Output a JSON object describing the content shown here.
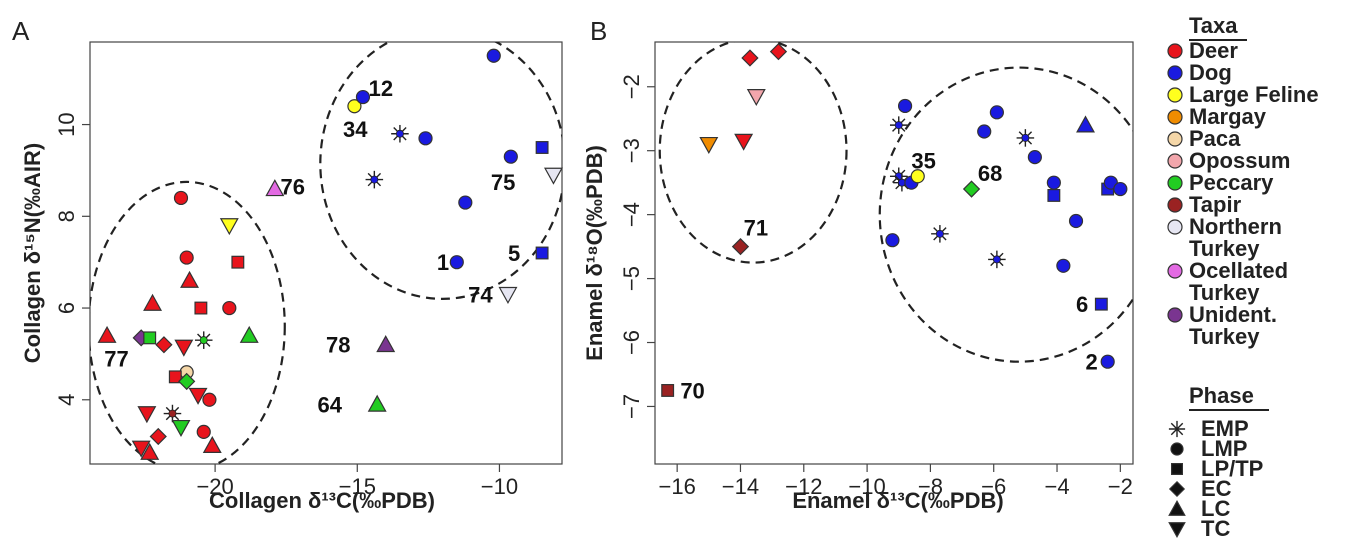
{
  "chart_data": [
    {
      "type": "scatter",
      "panel_label": "A",
      "xlabel": "Collagen δ¹³C(‰PDB)",
      "ylabel": "Collagen δ¹⁵N(‰AIR)",
      "xlim": [
        -24.4,
        -7.8
      ],
      "ylim": [
        2.6,
        11.8
      ],
      "xticks": [
        -20,
        -15,
        -10
      ],
      "yticks": [
        4,
        6,
        8,
        10
      ],
      "points": [
        {
          "x": -21.2,
          "y": 8.4,
          "taxon": "Deer",
          "phase": "LMP"
        },
        {
          "x": -19.5,
          "y": 7.8,
          "taxon": "Large Feline",
          "phase": "TC"
        },
        {
          "x": -21.0,
          "y": 7.1,
          "taxon": "Deer",
          "phase": "LMP"
        },
        {
          "x": -19.2,
          "y": 7.0,
          "taxon": "Deer",
          "phase": "LP/TP"
        },
        {
          "x": -20.9,
          "y": 6.6,
          "taxon": "Deer",
          "phase": "LC"
        },
        {
          "x": -22.2,
          "y": 6.1,
          "taxon": "Deer",
          "phase": "LC"
        },
        {
          "x": -20.5,
          "y": 6.0,
          "taxon": "Deer",
          "phase": "LP/TP"
        },
        {
          "x": -19.5,
          "y": 6.0,
          "taxon": "Deer",
          "phase": "LMP"
        },
        {
          "x": -23.8,
          "y": 5.4,
          "taxon": "Deer",
          "phase": "LC"
        },
        {
          "x": -22.6,
          "y": 5.35,
          "taxon": "Unident. Turkey",
          "phase": "EC"
        },
        {
          "x": -22.3,
          "y": 5.35,
          "taxon": "Peccary",
          "phase": "LP/TP"
        },
        {
          "x": -21.8,
          "y": 5.2,
          "taxon": "Deer",
          "phase": "EC"
        },
        {
          "x": -21.1,
          "y": 5.15,
          "taxon": "Deer",
          "phase": "TC"
        },
        {
          "x": -20.4,
          "y": 5.3,
          "taxon": "Peccary",
          "phase": "EMP"
        },
        {
          "x": -18.8,
          "y": 5.4,
          "taxon": "Peccary",
          "phase": "LC"
        },
        {
          "x": -21.0,
          "y": 4.6,
          "taxon": "Paca",
          "phase": "LMP"
        },
        {
          "x": -21.4,
          "y": 4.5,
          "taxon": "Deer",
          "phase": "LP/TP"
        },
        {
          "x": -21.0,
          "y": 4.4,
          "taxon": "Peccary",
          "phase": "EC"
        },
        {
          "x": -20.6,
          "y": 4.1,
          "taxon": "Deer",
          "phase": "TC"
        },
        {
          "x": -20.2,
          "y": 4.0,
          "taxon": "Deer",
          "phase": "LMP"
        },
        {
          "x": -21.5,
          "y": 3.7,
          "taxon": "Tapir",
          "phase": "EMP"
        },
        {
          "x": -22.4,
          "y": 3.7,
          "taxon": "Deer",
          "phase": "TC"
        },
        {
          "x": -20.4,
          "y": 3.3,
          "taxon": "Deer",
          "phase": "LMP"
        },
        {
          "x": -21.2,
          "y": 3.4,
          "taxon": "Peccary",
          "phase": "TC"
        },
        {
          "x": -22.0,
          "y": 3.2,
          "taxon": "Deer",
          "phase": "EC"
        },
        {
          "x": -20.1,
          "y": 3.0,
          "taxon": "Deer",
          "phase": "LC"
        },
        {
          "x": -22.6,
          "y": 2.95,
          "taxon": "Deer",
          "phase": "TC"
        },
        {
          "x": -22.3,
          "y": 2.85,
          "taxon": "Deer",
          "phase": "LC"
        },
        {
          "x": -17.9,
          "y": 8.6,
          "taxon": "Ocellated Turkey",
          "phase": "LC",
          "label": "76"
        },
        {
          "x": -15.1,
          "y": 10.4,
          "taxon": "Large Feline",
          "phase": "LMP",
          "label": "34"
        },
        {
          "x": -14.8,
          "y": 10.6,
          "taxon": "Dog",
          "phase": "LMP",
          "label": "12"
        },
        {
          "x": -13.5,
          "y": 9.8,
          "taxon": "Dog",
          "phase": "EMP"
        },
        {
          "x": -12.6,
          "y": 9.7,
          "taxon": "Dog",
          "phase": "LMP"
        },
        {
          "x": -10.2,
          "y": 11.5,
          "taxon": "Dog",
          "phase": "LMP"
        },
        {
          "x": -9.6,
          "y": 9.3,
          "taxon": "Dog",
          "phase": "LMP"
        },
        {
          "x": -8.5,
          "y": 9.5,
          "taxon": "Dog",
          "phase": "LP/TP"
        },
        {
          "x": -8.1,
          "y": 8.9,
          "taxon": "Northern Turkey",
          "phase": "TC",
          "label": "75"
        },
        {
          "x": -14.4,
          "y": 8.8,
          "taxon": "Dog",
          "phase": "EMP"
        },
        {
          "x": -11.2,
          "y": 8.3,
          "taxon": "Dog",
          "phase": "LMP"
        },
        {
          "x": -11.5,
          "y": 7.0,
          "taxon": "Dog",
          "phase": "LMP",
          "label": "1"
        },
        {
          "x": -8.5,
          "y": 7.2,
          "taxon": "Dog",
          "phase": "LP/TP",
          "label": "5"
        },
        {
          "x": -9.7,
          "y": 6.3,
          "taxon": "Northern Turkey",
          "phase": "TC",
          "label": "74"
        },
        {
          "x": -14.0,
          "y": 5.2,
          "taxon": "Unident. Turkey",
          "phase": "LC",
          "label": "78"
        },
        {
          "x": -14.3,
          "y": 3.9,
          "taxon": "Peccary",
          "phase": "LC",
          "label": "64"
        }
      ],
      "labels": [
        {
          "text": "76",
          "x": -17.7,
          "y": 8.65
        },
        {
          "text": "34",
          "x": -15.5,
          "y": 9.9
        },
        {
          "text": "12",
          "x": -14.6,
          "y": 10.8
        },
        {
          "text": "75",
          "x": -10.3,
          "y": 8.75
        },
        {
          "text": "1",
          "x": -12.2,
          "y": 7.0
        },
        {
          "text": "5",
          "x": -9.7,
          "y": 7.2
        },
        {
          "text": "74",
          "x": -11.1,
          "y": 6.3
        },
        {
          "text": "78",
          "x": -16.1,
          "y": 5.2
        },
        {
          "text": "64",
          "x": -16.4,
          "y": 3.9
        },
        {
          "text": "77",
          "x": -23.9,
          "y": 4.9
        }
      ],
      "ellipses": [
        {
          "cx": -21.0,
          "cy": 5.6,
          "rx": 3.45,
          "ry": 3.15
        },
        {
          "cx": -12.0,
          "cy": 9.15,
          "rx": 4.3,
          "ry": 2.95
        }
      ]
    },
    {
      "type": "scatter",
      "panel_label": "B",
      "xlabel": "Enamel δ¹³C(‰PDB)",
      "ylabel": "Enamel δ¹⁸O(‰PDB)",
      "xlim": [
        -16.7,
        -1.6
      ],
      "ylim": [
        -7.9,
        -1.3
      ],
      "xticks": [
        -16,
        -14,
        -12,
        -10,
        -8,
        -6,
        -4,
        -2
      ],
      "yticks": [
        -2,
        -3,
        -4,
        -5,
        -6,
        -7
      ],
      "points": [
        {
          "x": -13.7,
          "y": -1.55,
          "taxon": "Deer",
          "phase": "EC"
        },
        {
          "x": -12.8,
          "y": -1.45,
          "taxon": "Deer",
          "phase": "EC"
        },
        {
          "x": -13.5,
          "y": -2.15,
          "taxon": "Opossum",
          "phase": "TC"
        },
        {
          "x": -15.0,
          "y": -2.9,
          "taxon": "Margay",
          "phase": "TC"
        },
        {
          "x": -13.9,
          "y": -2.85,
          "taxon": "Deer",
          "phase": "TC"
        },
        {
          "x": -14.0,
          "y": -4.5,
          "taxon": "Tapir",
          "phase": "EC",
          "label": "71"
        },
        {
          "x": -16.3,
          "y": -6.75,
          "taxon": "Tapir",
          "phase": "LP/TP",
          "label": "70"
        },
        {
          "x": -8.8,
          "y": -2.3,
          "taxon": "Dog",
          "phase": "LMP"
        },
        {
          "x": -9.0,
          "y": -2.6,
          "taxon": "Dog",
          "phase": "EMP"
        },
        {
          "x": -9.0,
          "y": -3.4,
          "taxon": "Dog",
          "phase": "EMP"
        },
        {
          "x": -8.9,
          "y": -3.5,
          "taxon": "Dog",
          "phase": "EMP"
        },
        {
          "x": -8.6,
          "y": -3.5,
          "taxon": "Dog",
          "phase": "LMP"
        },
        {
          "x": -8.4,
          "y": -3.4,
          "taxon": "Large Feline",
          "phase": "LMP",
          "label": "35"
        },
        {
          "x": -6.7,
          "y": -3.6,
          "taxon": "Peccary",
          "phase": "EC",
          "label": "68"
        },
        {
          "x": -9.2,
          "y": -4.4,
          "taxon": "Dog",
          "phase": "LMP"
        },
        {
          "x": -7.7,
          "y": -4.3,
          "taxon": "Dog",
          "phase": "EMP"
        },
        {
          "x": -5.9,
          "y": -4.7,
          "taxon": "Dog",
          "phase": "EMP"
        },
        {
          "x": -6.3,
          "y": -2.7,
          "taxon": "Dog",
          "phase": "LMP"
        },
        {
          "x": -5.9,
          "y": -2.4,
          "taxon": "Dog",
          "phase": "LMP"
        },
        {
          "x": -5.0,
          "y": -2.8,
          "taxon": "Dog",
          "phase": "EMP"
        },
        {
          "x": -4.7,
          "y": -3.1,
          "taxon": "Dog",
          "phase": "LMP"
        },
        {
          "x": -4.1,
          "y": -3.5,
          "taxon": "Dog",
          "phase": "LMP"
        },
        {
          "x": -4.1,
          "y": -3.7,
          "taxon": "Dog",
          "phase": "LP/TP"
        },
        {
          "x": -3.4,
          "y": -4.1,
          "taxon": "Dog",
          "phase": "LMP"
        },
        {
          "x": -3.8,
          "y": -4.8,
          "taxon": "Dog",
          "phase": "LMP"
        },
        {
          "x": -3.1,
          "y": -2.6,
          "taxon": "Dog",
          "phase": "LC"
        },
        {
          "x": -2.4,
          "y": -3.6,
          "taxon": "Dog",
          "phase": "LP/TP"
        },
        {
          "x": -2.3,
          "y": -3.5,
          "taxon": "Dog",
          "phase": "LMP"
        },
        {
          "x": -2.0,
          "y": -3.6,
          "taxon": "Dog",
          "phase": "LMP"
        },
        {
          "x": -2.6,
          "y": -5.4,
          "taxon": "Dog",
          "phase": "LP/TP",
          "label": "6"
        },
        {
          "x": -2.4,
          "y": -6.3,
          "taxon": "Dog",
          "phase": "LMP",
          "label": "2"
        }
      ],
      "labels": [
        {
          "text": "71",
          "x": -13.9,
          "y": -4.2
        },
        {
          "text": "70",
          "x": -15.9,
          "y": -6.75
        },
        {
          "text": "35",
          "x": -8.6,
          "y": -3.15
        },
        {
          "text": "68",
          "x": -6.5,
          "y": -3.35
        },
        {
          "text": "6",
          "x": -3.4,
          "y": -5.4
        },
        {
          "text": "2",
          "x": -3.1,
          "y": -6.3
        }
      ],
      "ellipses": [
        {
          "cx": -13.6,
          "cy": -3.0,
          "rx": 2.95,
          "ry": 1.75
        },
        {
          "cx": -5.2,
          "cy": -4.0,
          "rx": 4.4,
          "ry": 2.3
        }
      ]
    }
  ],
  "legend": {
    "taxa_title": "Taxa",
    "taxa": [
      {
        "lines": [
          "Deer"
        ],
        "color": "#e8141c"
      },
      {
        "lines": [
          "Dog"
        ],
        "color": "#1a1ae0"
      },
      {
        "lines": [
          "Large Feline"
        ],
        "color": "#ffff1e"
      },
      {
        "lines": [
          "Margay"
        ],
        "color": "#f08c00"
      },
      {
        "lines": [
          "Paca"
        ],
        "color": "#f5d7a8"
      },
      {
        "lines": [
          "Opossum"
        ],
        "color": "#f2a6ac"
      },
      {
        "lines": [
          "Peccary"
        ],
        "color": "#22cc22"
      },
      {
        "lines": [
          "Tapir"
        ],
        "color": "#9a2222"
      },
      {
        "lines": [
          "Northern",
          "Turkey"
        ],
        "color": "#e6e6f2"
      },
      {
        "lines": [
          "Ocellated",
          "Turkey"
        ],
        "color": "#e36ae3"
      },
      {
        "lines": [
          "Unident.",
          "Turkey"
        ],
        "color": "#7a3590"
      }
    ],
    "phase_title": "Phase",
    "phases": [
      {
        "label": "EMP",
        "shape": "star"
      },
      {
        "label": "LMP",
        "shape": "circle"
      },
      {
        "label": "LP/TP",
        "shape": "square"
      },
      {
        "label": "EC",
        "shape": "diamond"
      },
      {
        "label": "LC",
        "shape": "triangle-up"
      },
      {
        "label": "TC",
        "shape": "triangle-down"
      }
    ]
  }
}
